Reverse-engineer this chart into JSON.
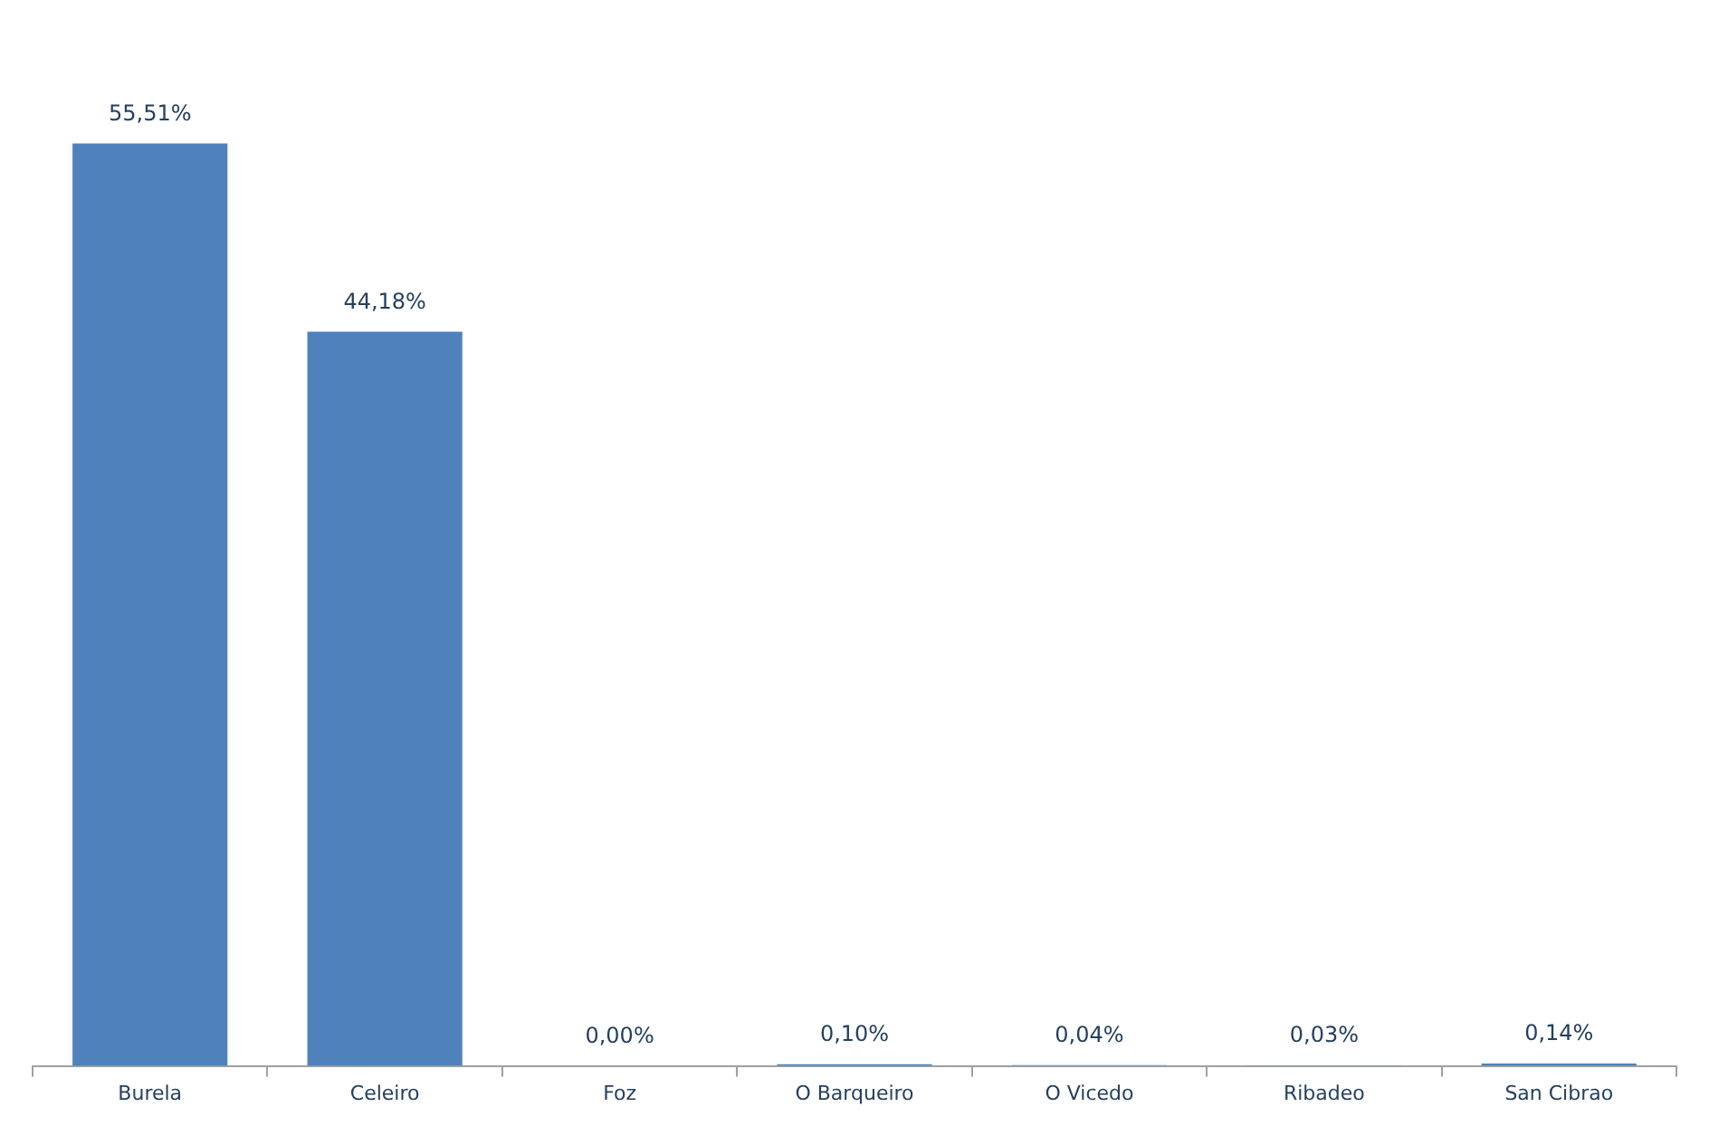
{
  "chart_data": {
    "type": "bar",
    "categories": [
      "Burela",
      "Celeiro",
      "Foz",
      "O Barqueiro",
      "O Vicedo",
      "Ribadeo",
      "San Cibrao"
    ],
    "values": [
      55.51,
      44.18,
      0.0,
      0.1,
      0.04,
      0.03,
      0.14
    ],
    "value_labels": [
      "55,51%",
      "44,18%",
      "0,00%",
      "0,10%",
      "0,04%",
      "0,03%",
      "0,14%"
    ],
    "color": "#4f81bd",
    "legend": false
  }
}
